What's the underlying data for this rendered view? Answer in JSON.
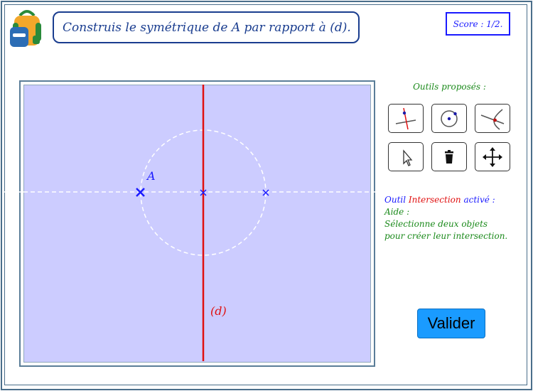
{
  "header": {
    "instruction": "Construis le symétrique de A par rapport à (d).",
    "score": "Score : 1/2."
  },
  "canvas": {
    "point_label": "A",
    "line_label": "(d)"
  },
  "tools": {
    "title": "Outils proposés :",
    "items": [
      {
        "name": "perpendicular-line-icon"
      },
      {
        "name": "circle-center-point-icon"
      },
      {
        "name": "intersection-icon"
      },
      {
        "name": "pointer-icon"
      },
      {
        "name": "trash-icon"
      },
      {
        "name": "move-icon"
      }
    ]
  },
  "help": {
    "tool_prefix": "Outil ",
    "tool_name": "Intersection",
    "tool_suffix": " activé :",
    "aide": "Aide :",
    "line1": "Sélectionne deux objets",
    "line2": "pour créer leur intersection."
  },
  "validate_label": "Valider",
  "colors": {
    "canvas_bg": "#ccccff",
    "line_d": "#e01010",
    "points": "#1a1aff",
    "construction": "#ffffff",
    "button": "#1a9bff"
  }
}
